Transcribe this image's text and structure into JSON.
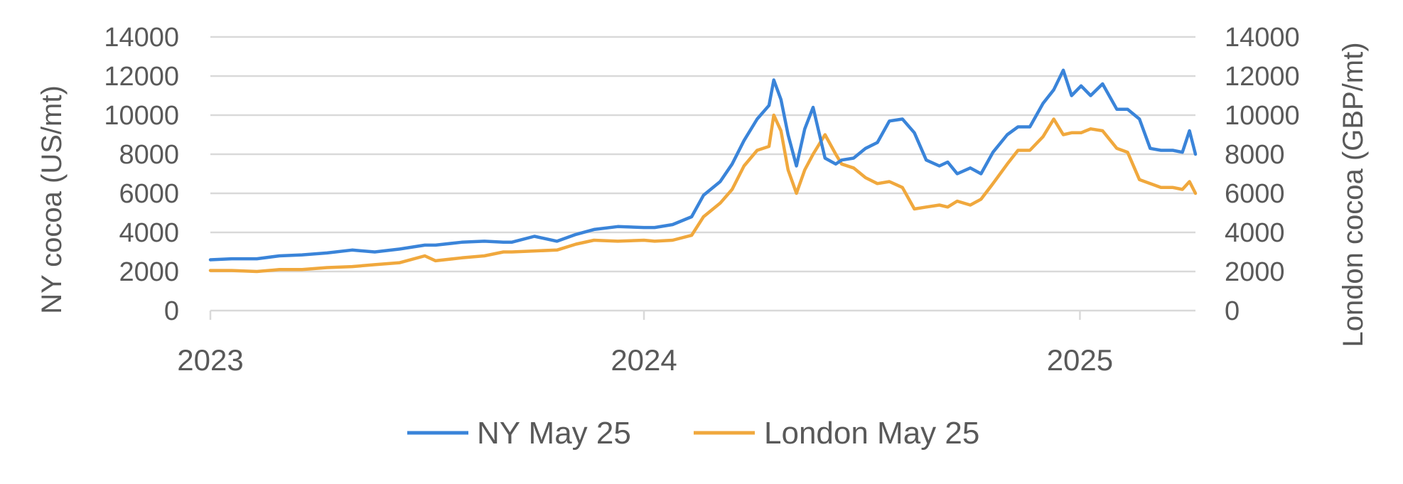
{
  "chart_data": {
    "type": "line",
    "x_type": "date",
    "xlim": [
      "2023-01-02",
      "2025-04-08"
    ],
    "x_ticks": [
      "2023-01-01",
      "2024-01-01",
      "2025-01-01"
    ],
    "x_tick_labels": [
      "2023",
      "2024",
      "2025"
    ],
    "ylabel_left": "NY cocoa (US/mt)",
    "ylabel_right": "London cocoa (GBP/mt)",
    "ylim": [
      0,
      14000
    ],
    "yticks": [
      "0",
      "2000",
      "4000",
      "6000",
      "8000",
      "10000",
      "12000",
      "14000"
    ],
    "grid": true,
    "legend_position": "bottom",
    "series": [
      {
        "name": "NY May 25",
        "axis": "left",
        "color": "#3a84d9",
        "x": [
          "2023-01-02",
          "2023-01-20",
          "2023-02-10",
          "2023-03-01",
          "2023-03-20",
          "2023-04-10",
          "2023-05-01",
          "2023-05-20",
          "2023-06-10",
          "2023-07-01",
          "2023-07-10",
          "2023-08-01",
          "2023-08-20",
          "2023-09-05",
          "2023-09-12",
          "2023-10-01",
          "2023-10-20",
          "2023-11-05",
          "2023-11-20",
          "2023-12-10",
          "2024-01-01",
          "2024-01-10",
          "2024-01-25",
          "2024-02-10",
          "2024-02-20",
          "2024-03-05",
          "2024-03-15",
          "2024-03-25",
          "2024-04-05",
          "2024-04-15",
          "2024-04-19",
          "2024-04-25",
          "2024-05-01",
          "2024-05-08",
          "2024-05-15",
          "2024-05-22",
          "2024-06-01",
          "2024-06-10",
          "2024-06-15",
          "2024-06-25",
          "2024-07-05",
          "2024-07-15",
          "2024-07-25",
          "2024-08-05",
          "2024-08-15",
          "2024-08-25",
          "2024-09-05",
          "2024-09-12",
          "2024-09-20",
          "2024-10-01",
          "2024-10-10",
          "2024-10-20",
          "2024-11-01",
          "2024-11-10",
          "2024-11-20",
          "2024-12-01",
          "2024-12-10",
          "2024-12-18",
          "2024-12-25",
          "2025-01-02",
          "2025-01-10",
          "2025-01-20",
          "2025-02-01",
          "2025-02-10",
          "2025-02-20",
          "2025-03-01",
          "2025-03-10",
          "2025-03-20",
          "2025-03-28",
          "2025-04-03",
          "2025-04-08"
        ],
        "values": [
          2600,
          2650,
          2650,
          2800,
          2850,
          2950,
          3100,
          3000,
          3150,
          3350,
          3350,
          3500,
          3550,
          3500,
          3500,
          3800,
          3550,
          3900,
          4150,
          4300,
          4250,
          4250,
          4400,
          4800,
          5900,
          6600,
          7500,
          8700,
          9800,
          10500,
          11800,
          10800,
          9000,
          7400,
          9300,
          10400,
          7800,
          7500,
          7700,
          7800,
          8300,
          8600,
          9700,
          9800,
          9100,
          7700,
          7400,
          7600,
          7000,
          7300,
          7000,
          8100,
          9000,
          9400,
          9400,
          10600,
          11300,
          12300,
          11000,
          11500,
          11000,
          11600,
          10300,
          10300,
          9800,
          8300,
          8200,
          8200,
          8100,
          9200,
          8000
        ]
      },
      {
        "name": "London May 25",
        "axis": "right",
        "color": "#f0a83d",
        "x": [
          "2023-01-02",
          "2023-01-20",
          "2023-02-10",
          "2023-03-01",
          "2023-03-20",
          "2023-04-10",
          "2023-05-01",
          "2023-05-20",
          "2023-06-10",
          "2023-07-01",
          "2023-07-10",
          "2023-08-01",
          "2023-08-20",
          "2023-09-05",
          "2023-09-12",
          "2023-10-01",
          "2023-10-20",
          "2023-11-05",
          "2023-11-20",
          "2023-12-10",
          "2024-01-01",
          "2024-01-10",
          "2024-01-25",
          "2024-02-10",
          "2024-02-20",
          "2024-03-05",
          "2024-03-15",
          "2024-03-25",
          "2024-04-05",
          "2024-04-15",
          "2024-04-19",
          "2024-04-25",
          "2024-05-01",
          "2024-05-08",
          "2024-05-15",
          "2024-05-22",
          "2024-06-01",
          "2024-06-10",
          "2024-06-15",
          "2024-06-25",
          "2024-07-05",
          "2024-07-15",
          "2024-07-25",
          "2024-08-05",
          "2024-08-15",
          "2024-08-25",
          "2024-09-05",
          "2024-09-12",
          "2024-09-20",
          "2024-10-01",
          "2024-10-10",
          "2024-10-20",
          "2024-11-01",
          "2024-11-10",
          "2024-11-20",
          "2024-12-01",
          "2024-12-10",
          "2024-12-18",
          "2024-12-25",
          "2025-01-02",
          "2025-01-10",
          "2025-01-20",
          "2025-02-01",
          "2025-02-10",
          "2025-02-20",
          "2025-03-01",
          "2025-03-10",
          "2025-03-20",
          "2025-03-28",
          "2025-04-03",
          "2025-04-08"
        ],
        "values": [
          2050,
          2050,
          2000,
          2100,
          2100,
          2200,
          2250,
          2350,
          2450,
          2800,
          2550,
          2700,
          2800,
          3000,
          3000,
          3050,
          3100,
          3400,
          3600,
          3550,
          3600,
          3550,
          3600,
          3850,
          4800,
          5500,
          6200,
          7400,
          8200,
          8400,
          10000,
          9200,
          7200,
          6000,
          7200,
          8000,
          9000,
          8000,
          7500,
          7300,
          6800,
          6500,
          6600,
          6300,
          5200,
          5300,
          5400,
          5300,
          5600,
          5400,
          5700,
          6500,
          7500,
          8200,
          8200,
          8900,
          9800,
          9000,
          9100,
          9100,
          9300,
          9200,
          8300,
          8100,
          6700,
          6500,
          6300,
          6300,
          6200,
          6600,
          6000
        ]
      }
    ]
  }
}
